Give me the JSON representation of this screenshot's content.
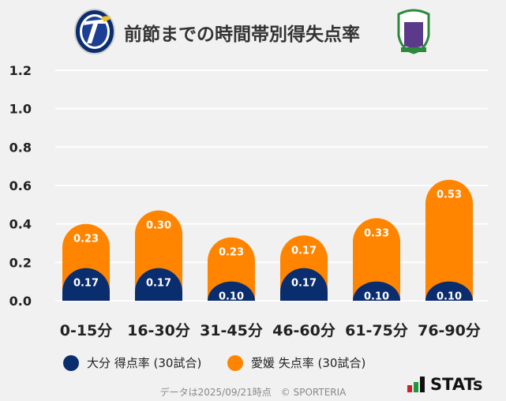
{
  "title": "前節までの時間帯別得失点率",
  "logos": {
    "left": "TRINITA",
    "right": "EFC"
  },
  "chart_data": {
    "type": "bar",
    "stacked": true,
    "title": "前節までの時間帯別得失点率",
    "categories": [
      "0-15分",
      "16-30分",
      "31-45分",
      "46-60分",
      "61-75分",
      "76-90分"
    ],
    "series": [
      {
        "name": "大分 得点率 (30試合)",
        "color": "#0a2d6e",
        "values": [
          0.17,
          0.17,
          0.1,
          0.17,
          0.1,
          0.1
        ],
        "labels": [
          "0.17",
          "0.17",
          "0.10",
          "0.17",
          "0.10",
          "0.10"
        ]
      },
      {
        "name": "愛媛 失点率 (30試合)",
        "color": "#ff8400",
        "values": [
          0.23,
          0.3,
          0.23,
          0.17,
          0.33,
          0.53
        ],
        "labels": [
          "0.23",
          "0.30",
          "0.23",
          "0.17",
          "0.33",
          "0.53"
        ]
      }
    ],
    "ylim": [
      0,
      1.2
    ],
    "yticks": [
      "0.0",
      "0.2",
      "0.4",
      "0.6",
      "0.8",
      "1.0",
      "1.2"
    ],
    "grid": true,
    "legend": "bottom"
  },
  "footer": "データは2025/09/21時点　© SPORTERIA",
  "brand": "STATs"
}
